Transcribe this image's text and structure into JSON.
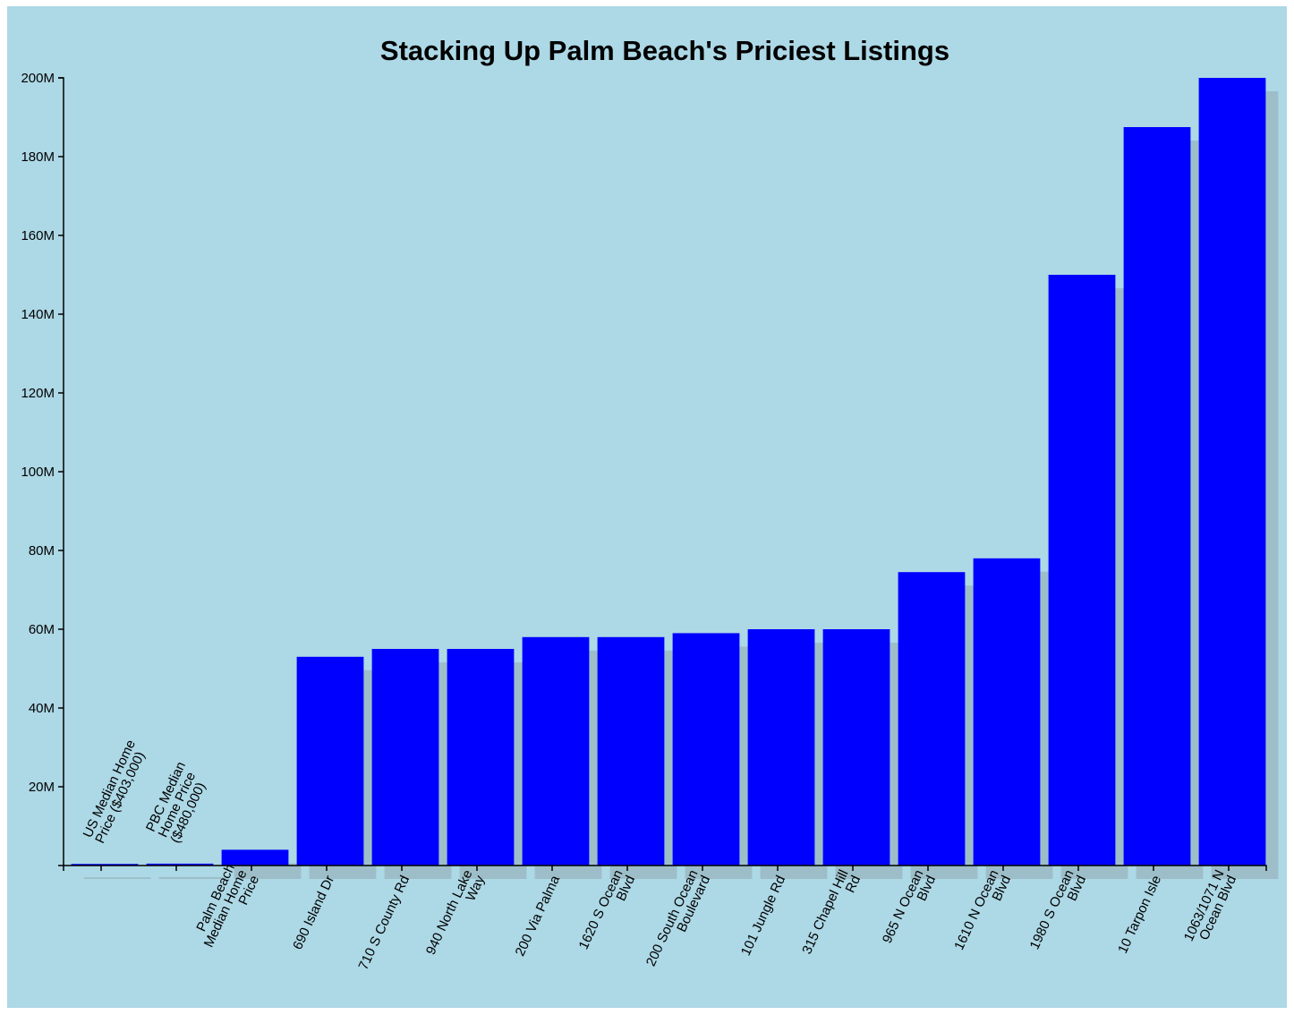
{
  "chart_data": {
    "type": "bar",
    "title": "Stacking Up Palm Beach's Priciest Listings",
    "xlabel": "",
    "ylabel": "",
    "ylim": [
      0,
      200000000
    ],
    "yticks": [
      {
        "value": 20000000,
        "label": "20M"
      },
      {
        "value": 40000000,
        "label": "40M"
      },
      {
        "value": 60000000,
        "label": "60M"
      },
      {
        "value": 80000000,
        "label": "80M"
      },
      {
        "value": 100000000,
        "label": "100M"
      },
      {
        "value": 120000000,
        "label": "120M"
      },
      {
        "value": 140000000,
        "label": "140M"
      },
      {
        "value": 160000000,
        "label": "160M"
      },
      {
        "value": 180000000,
        "label": "180M"
      },
      {
        "value": 200000000,
        "label": "200M"
      }
    ],
    "categories": [
      {
        "lines": [
          "US Median Home",
          "Price ($403,000)"
        ],
        "label_position": "above"
      },
      {
        "lines": [
          "PBC Median",
          "Home Price",
          "($480,000)"
        ],
        "label_position": "above"
      },
      {
        "lines": [
          "Palm Beach",
          "Median Home",
          "Price"
        ],
        "label_position": "below"
      },
      {
        "lines": [
          "690 Island Dr"
        ],
        "label_position": "below"
      },
      {
        "lines": [
          "710 S County Rd"
        ],
        "label_position": "below"
      },
      {
        "lines": [
          "940 North Lake",
          "Way"
        ],
        "label_position": "below"
      },
      {
        "lines": [
          "200 Via Palma"
        ],
        "label_position": "below"
      },
      {
        "lines": [
          "1620 S Ocean",
          "Blvd"
        ],
        "label_position": "below"
      },
      {
        "lines": [
          "200 South Ocean",
          "Boulevard"
        ],
        "label_position": "below"
      },
      {
        "lines": [
          "101 Jungle Rd"
        ],
        "label_position": "below"
      },
      {
        "lines": [
          "315 Chapel Hill",
          "Rd"
        ],
        "label_position": "below"
      },
      {
        "lines": [
          "965 N Ocean",
          "Blvd"
        ],
        "label_position": "below"
      },
      {
        "lines": [
          "1610 N Ocean",
          "Blvd"
        ],
        "label_position": "below"
      },
      {
        "lines": [
          "1980 S Ocean",
          "Blvd"
        ],
        "label_position": "below"
      },
      {
        "lines": [
          "10 Tarpon Isle"
        ],
        "label_position": "below"
      },
      {
        "lines": [
          "1063/1071 N",
          "Ocean Blvd"
        ],
        "label_position": "below"
      }
    ],
    "values": [
      403000,
      480000,
      4000000,
      53000000,
      55000000,
      55000000,
      58000000,
      58000000,
      59000000,
      60000000,
      60000000,
      74500000,
      78000000,
      150000000,
      187500000,
      200000000
    ],
    "colors": {
      "bar": "#0000ff",
      "background": "#add8e6",
      "shadow": "#8fa9b0"
    },
    "grid": false,
    "legend": "none"
  }
}
